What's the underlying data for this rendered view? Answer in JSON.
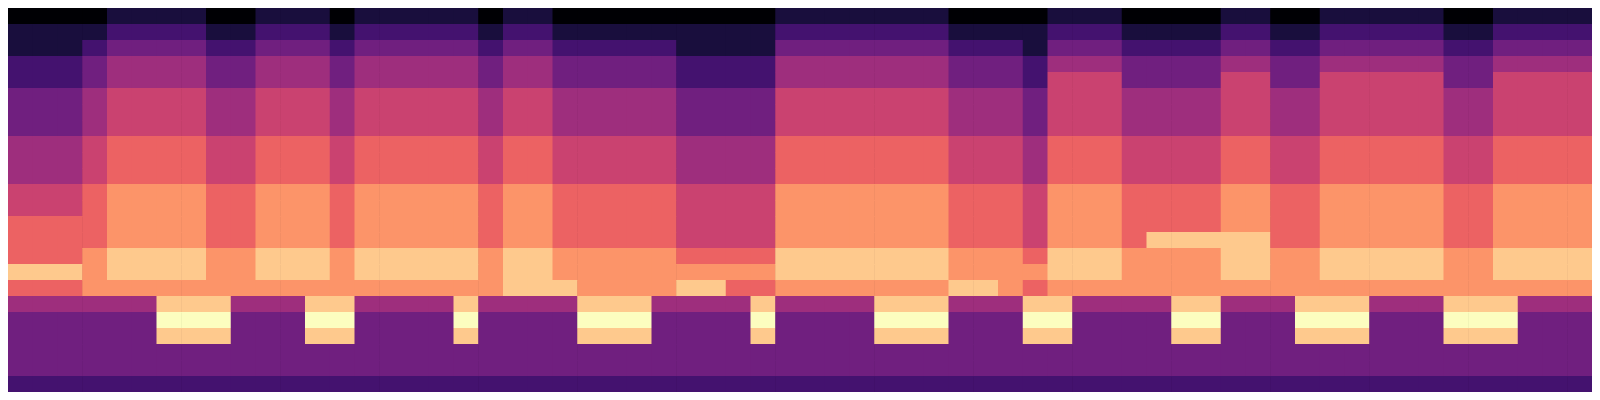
{
  "chart_data": {
    "type": "heatmap",
    "color": "magma",
    "tick_labels": false,
    "value_range": [
      0,
      9
    ],
    "cells": [
      [
        0,
        0,
        0,
        0,
        1,
        1,
        1,
        1,
        0,
        0,
        1,
        1,
        1,
        0,
        1,
        1,
        1,
        1,
        1,
        0,
        1,
        1,
        0,
        0,
        0,
        0,
        0,
        0,
        0,
        0,
        0,
        1,
        1,
        1,
        1,
        1,
        1,
        1,
        0,
        0,
        0,
        0,
        1,
        1,
        1,
        0,
        0,
        0,
        0,
        1,
        1,
        0,
        0,
        1,
        1,
        1,
        1,
        1,
        0,
        0,
        1,
        1,
        1,
        1
      ],
      [
        1,
        1,
        1,
        1,
        2,
        2,
        2,
        2,
        1,
        1,
        2,
        2,
        2,
        1,
        2,
        2,
        2,
        2,
        2,
        1,
        2,
        2,
        1,
        1,
        1,
        1,
        1,
        1,
        1,
        1,
        1,
        2,
        2,
        2,
        2,
        2,
        2,
        2,
        1,
        1,
        1,
        1,
        2,
        2,
        2,
        1,
        1,
        1,
        1,
        2,
        2,
        1,
        1,
        2,
        2,
        2,
        2,
        2,
        1,
        1,
        2,
        2,
        2,
        2
      ],
      [
        1,
        1,
        1,
        2,
        3,
        3,
        3,
        3,
        2,
        2,
        3,
        3,
        3,
        2,
        3,
        3,
        3,
        3,
        3,
        2,
        3,
        3,
        2,
        2,
        2,
        2,
        2,
        1,
        1,
        1,
        1,
        3,
        3,
        3,
        3,
        3,
        3,
        3,
        2,
        2,
        2,
        1,
        3,
        3,
        3,
        2,
        2,
        2,
        2,
        3,
        3,
        2,
        2,
        3,
        3,
        3,
        3,
        3,
        2,
        2,
        3,
        3,
        3,
        3
      ],
      [
        2,
        2,
        2,
        3,
        4,
        4,
        4,
        4,
        3,
        3,
        4,
        4,
        4,
        3,
        4,
        4,
        4,
        4,
        4,
        3,
        4,
        4,
        3,
        3,
        3,
        3,
        3,
        2,
        2,
        2,
        2,
        4,
        4,
        4,
        4,
        4,
        4,
        4,
        3,
        3,
        3,
        2,
        4,
        4,
        4,
        3,
        3,
        3,
        3,
        4,
        4,
        3,
        3,
        4,
        4,
        4,
        4,
        4,
        3,
        3,
        4,
        4,
        4,
        4
      ],
      [
        2,
        2,
        2,
        3,
        4,
        4,
        4,
        4,
        3,
        3,
        4,
        4,
        4,
        3,
        4,
        4,
        4,
        4,
        4,
        3,
        4,
        4,
        3,
        3,
        3,
        3,
        3,
        2,
        2,
        2,
        2,
        4,
        4,
        4,
        4,
        4,
        4,
        4,
        3,
        3,
        3,
        2,
        5,
        5,
        5,
        3,
        3,
        3,
        3,
        5,
        5,
        3,
        3,
        5,
        5,
        5,
        5,
        5,
        3,
        3,
        5,
        5,
        5,
        5
      ],
      [
        3,
        3,
        3,
        4,
        5,
        5,
        5,
        5,
        4,
        4,
        5,
        5,
        5,
        4,
        5,
        5,
        5,
        5,
        5,
        4,
        5,
        5,
        4,
        4,
        4,
        4,
        4,
        3,
        3,
        3,
        3,
        5,
        5,
        5,
        5,
        5,
        5,
        5,
        4,
        4,
        4,
        3,
        5,
        5,
        5,
        4,
        4,
        4,
        4,
        5,
        5,
        4,
        4,
        5,
        5,
        5,
        5,
        5,
        4,
        4,
        5,
        5,
        5,
        5
      ],
      [
        3,
        3,
        3,
        4,
        5,
        5,
        5,
        5,
        4,
        4,
        5,
        5,
        5,
        4,
        5,
        5,
        5,
        5,
        5,
        4,
        5,
        5,
        4,
        4,
        4,
        4,
        4,
        3,
        3,
        3,
        3,
        5,
        5,
        5,
        5,
        5,
        5,
        5,
        4,
        4,
        4,
        3,
        5,
        5,
        5,
        4,
        4,
        4,
        4,
        5,
        5,
        4,
        4,
        5,
        5,
        5,
        5,
        5,
        4,
        4,
        5,
        5,
        5,
        5
      ],
      [
        3,
        3,
        3,
        4,
        5,
        5,
        5,
        5,
        4,
        4,
        5,
        5,
        5,
        4,
        5,
        5,
        5,
        5,
        5,
        4,
        5,
        5,
        4,
        4,
        4,
        4,
        4,
        3,
        3,
        3,
        3,
        5,
        5,
        5,
        5,
        5,
        5,
        5,
        4,
        4,
        4,
        3,
        5,
        5,
        5,
        4,
        4,
        4,
        4,
        5,
        5,
        4,
        4,
        5,
        5,
        5,
        5,
        5,
        4,
        4,
        5,
        5,
        5,
        5
      ],
      [
        4,
        4,
        4,
        5,
        6,
        6,
        6,
        6,
        5,
        5,
        6,
        6,
        6,
        5,
        6,
        6,
        6,
        6,
        6,
        5,
        6,
        6,
        5,
        5,
        5,
        5,
        5,
        4,
        4,
        4,
        4,
        6,
        6,
        6,
        6,
        6,
        6,
        6,
        5,
        5,
        5,
        4,
        6,
        6,
        6,
        5,
        5,
        5,
        5,
        6,
        6,
        5,
        5,
        6,
        6,
        6,
        6,
        6,
        5,
        5,
        6,
        6,
        6,
        6
      ],
      [
        4,
        4,
        4,
        5,
        6,
        6,
        6,
        6,
        5,
        5,
        6,
        6,
        6,
        5,
        6,
        6,
        6,
        6,
        6,
        5,
        6,
        6,
        5,
        5,
        5,
        5,
        5,
        4,
        4,
        4,
        4,
        6,
        6,
        6,
        6,
        6,
        6,
        6,
        5,
        5,
        5,
        4,
        6,
        6,
        6,
        5,
        5,
        5,
        5,
        6,
        6,
        5,
        5,
        6,
        6,
        6,
        6,
        6,
        5,
        5,
        6,
        6,
        6,
        6
      ],
      [
        4,
        4,
        4,
        5,
        6,
        6,
        6,
        6,
        5,
        5,
        6,
        6,
        6,
        5,
        6,
        6,
        6,
        6,
        6,
        5,
        6,
        6,
        5,
        5,
        5,
        5,
        5,
        4,
        4,
        4,
        4,
        6,
        6,
        6,
        6,
        6,
        6,
        6,
        5,
        5,
        5,
        4,
        6,
        6,
        6,
        5,
        5,
        5,
        5,
        6,
        6,
        5,
        5,
        6,
        6,
        6,
        6,
        6,
        5,
        5,
        6,
        6,
        6,
        6
      ],
      [
        5,
        5,
        5,
        6,
        7,
        7,
        7,
        7,
        6,
        6,
        7,
        7,
        7,
        6,
        7,
        7,
        7,
        7,
        7,
        6,
        7,
        7,
        6,
        6,
        6,
        6,
        6,
        5,
        5,
        5,
        5,
        7,
        7,
        7,
        7,
        7,
        7,
        7,
        6,
        6,
        6,
        5,
        7,
        7,
        7,
        6,
        6,
        6,
        6,
        7,
        7,
        6,
        6,
        7,
        7,
        7,
        7,
        7,
        6,
        6,
        7,
        7,
        7,
        7
      ],
      [
        5,
        5,
        5,
        6,
        7,
        7,
        7,
        7,
        6,
        6,
        7,
        7,
        7,
        6,
        7,
        7,
        7,
        7,
        7,
        6,
        7,
        7,
        6,
        6,
        6,
        6,
        6,
        5,
        5,
        5,
        5,
        7,
        7,
        7,
        7,
        7,
        7,
        7,
        6,
        6,
        6,
        5,
        7,
        7,
        7,
        6,
        6,
        6,
        6,
        7,
        7,
        6,
        6,
        7,
        7,
        7,
        7,
        7,
        6,
        6,
        7,
        7,
        7,
        7
      ],
      [
        6,
        6,
        6,
        6,
        7,
        7,
        7,
        7,
        6,
        6,
        7,
        7,
        7,
        6,
        7,
        7,
        7,
        7,
        7,
        6,
        7,
        7,
        6,
        6,
        6,
        6,
        6,
        5,
        5,
        5,
        5,
        7,
        7,
        7,
        7,
        7,
        7,
        7,
        6,
        6,
        6,
        5,
        7,
        7,
        7,
        6,
        6,
        6,
        6,
        7,
        7,
        6,
        6,
        7,
        7,
        7,
        7,
        7,
        6,
        6,
        7,
        7,
        7,
        7
      ],
      [
        6,
        6,
        6,
        6,
        7,
        7,
        7,
        7,
        6,
        6,
        7,
        7,
        7,
        6,
        7,
        7,
        7,
        7,
        7,
        6,
        7,
        7,
        6,
        6,
        6,
        6,
        6,
        5,
        5,
        5,
        5,
        7,
        7,
        7,
        7,
        7,
        7,
        7,
        6,
        6,
        6,
        5,
        7,
        7,
        7,
        6,
        8,
        8,
        8,
        8,
        8,
        6,
        6,
        7,
        7,
        7,
        7,
        7,
        6,
        6,
        7,
        7,
        7,
        7
      ],
      [
        6,
        6,
        6,
        7,
        8,
        8,
        8,
        8,
        7,
        7,
        8,
        8,
        8,
        7,
        8,
        8,
        8,
        8,
        8,
        7,
        8,
        8,
        7,
        7,
        7,
        7,
        7,
        6,
        6,
        6,
        6,
        8,
        8,
        8,
        8,
        8,
        8,
        8,
        7,
        7,
        7,
        6,
        8,
        8,
        8,
        7,
        7,
        7,
        7,
        8,
        8,
        7,
        7,
        8,
        8,
        8,
        8,
        8,
        7,
        7,
        8,
        8,
        8,
        8
      ],
      [
        8,
        8,
        8,
        7,
        8,
        8,
        8,
        8,
        7,
        7,
        8,
        8,
        8,
        7,
        8,
        8,
        8,
        8,
        8,
        7,
        8,
        8,
        7,
        7,
        7,
        7,
        7,
        7,
        7,
        7,
        7,
        8,
        8,
        8,
        8,
        8,
        8,
        8,
        7,
        7,
        7,
        7,
        8,
        8,
        8,
        7,
        7,
        7,
        7,
        8,
        8,
        7,
        7,
        8,
        8,
        8,
        8,
        8,
        7,
        7,
        8,
        8,
        8,
        8
      ],
      [
        6,
        6,
        6,
        7,
        7,
        7,
        7,
        7,
        7,
        7,
        7,
        7,
        7,
        7,
        7,
        7,
        7,
        7,
        7,
        7,
        8,
        8,
        8,
        7,
        7,
        7,
        7,
        8,
        8,
        6,
        6,
        7,
        7,
        7,
        7,
        7,
        7,
        7,
        8,
        8,
        7,
        6,
        7,
        7,
        7,
        7,
        7,
        7,
        7,
        7,
        7,
        7,
        7,
        7,
        7,
        7,
        7,
        7,
        7,
        7,
        7,
        7,
        7,
        7
      ],
      [
        4,
        4,
        4,
        4,
        4,
        4,
        8,
        8,
        8,
        4,
        4,
        4,
        8,
        8,
        4,
        4,
        4,
        4,
        8,
        4,
        4,
        4,
        4,
        8,
        8,
        8,
        4,
        4,
        4,
        4,
        8,
        4,
        4,
        4,
        4,
        8,
        8,
        8,
        4,
        4,
        4,
        8,
        8,
        4,
        4,
        4,
        4,
        8,
        8,
        4,
        4,
        4,
        8,
        8,
        8,
        4,
        4,
        4,
        8,
        8,
        8,
        4,
        4,
        4
      ],
      [
        3,
        3,
        3,
        3,
        3,
        3,
        9,
        9,
        9,
        3,
        3,
        3,
        9,
        9,
        3,
        3,
        3,
        3,
        9,
        3,
        3,
        3,
        3,
        9,
        9,
        9,
        3,
        3,
        3,
        3,
        9,
        3,
        3,
        3,
        3,
        9,
        9,
        9,
        3,
        3,
        3,
        9,
        9,
        3,
        3,
        3,
        3,
        9,
        9,
        3,
        3,
        3,
        9,
        9,
        9,
        3,
        3,
        3,
        9,
        9,
        9,
        3,
        3,
        3
      ],
      [
        3,
        3,
        3,
        3,
        3,
        3,
        8,
        8,
        8,
        3,
        3,
        3,
        8,
        8,
        3,
        3,
        3,
        3,
        8,
        3,
        3,
        3,
        3,
        8,
        8,
        8,
        3,
        3,
        3,
        3,
        8,
        3,
        3,
        3,
        3,
        8,
        8,
        8,
        3,
        3,
        3,
        8,
        8,
        3,
        3,
        3,
        3,
        8,
        8,
        3,
        3,
        3,
        8,
        8,
        8,
        3,
        3,
        3,
        8,
        8,
        8,
        3,
        3,
        3
      ],
      [
        3,
        3,
        3,
        3,
        3,
        3,
        3,
        3,
        3,
        3,
        3,
        3,
        3,
        3,
        3,
        3,
        3,
        3,
        3,
        3,
        3,
        3,
        3,
        3,
        3,
        3,
        3,
        3,
        3,
        3,
        3,
        3,
        3,
        3,
        3,
        3,
        3,
        3,
        3,
        3,
        3,
        3,
        3,
        3,
        3,
        3,
        3,
        3,
        3,
        3,
        3,
        3,
        3,
        3,
        3,
        3,
        3,
        3,
        3,
        3,
        3,
        3,
        3,
        3
      ],
      [
        3,
        3,
        3,
        3,
        3,
        3,
        3,
        3,
        3,
        3,
        3,
        3,
        3,
        3,
        3,
        3,
        3,
        3,
        3,
        3,
        3,
        3,
        3,
        3,
        3,
        3,
        3,
        3,
        3,
        3,
        3,
        3,
        3,
        3,
        3,
        3,
        3,
        3,
        3,
        3,
        3,
        3,
        3,
        3,
        3,
        3,
        3,
        3,
        3,
        3,
        3,
        3,
        3,
        3,
        3,
        3,
        3,
        3,
        3,
        3,
        3,
        3,
        3,
        3
      ],
      [
        2,
        2,
        2,
        2,
        2,
        2,
        2,
        2,
        2,
        2,
        2,
        2,
        2,
        2,
        2,
        2,
        2,
        2,
        2,
        2,
        2,
        2,
        2,
        2,
        2,
        2,
        2,
        2,
        2,
        2,
        2,
        2,
        2,
        2,
        2,
        2,
        2,
        2,
        2,
        2,
        2,
        2,
        2,
        2,
        2,
        2,
        2,
        2,
        2,
        2,
        2,
        2,
        2,
        2,
        2,
        2,
        2,
        2,
        2,
        2,
        2,
        2,
        2,
        2
      ]
    ]
  }
}
